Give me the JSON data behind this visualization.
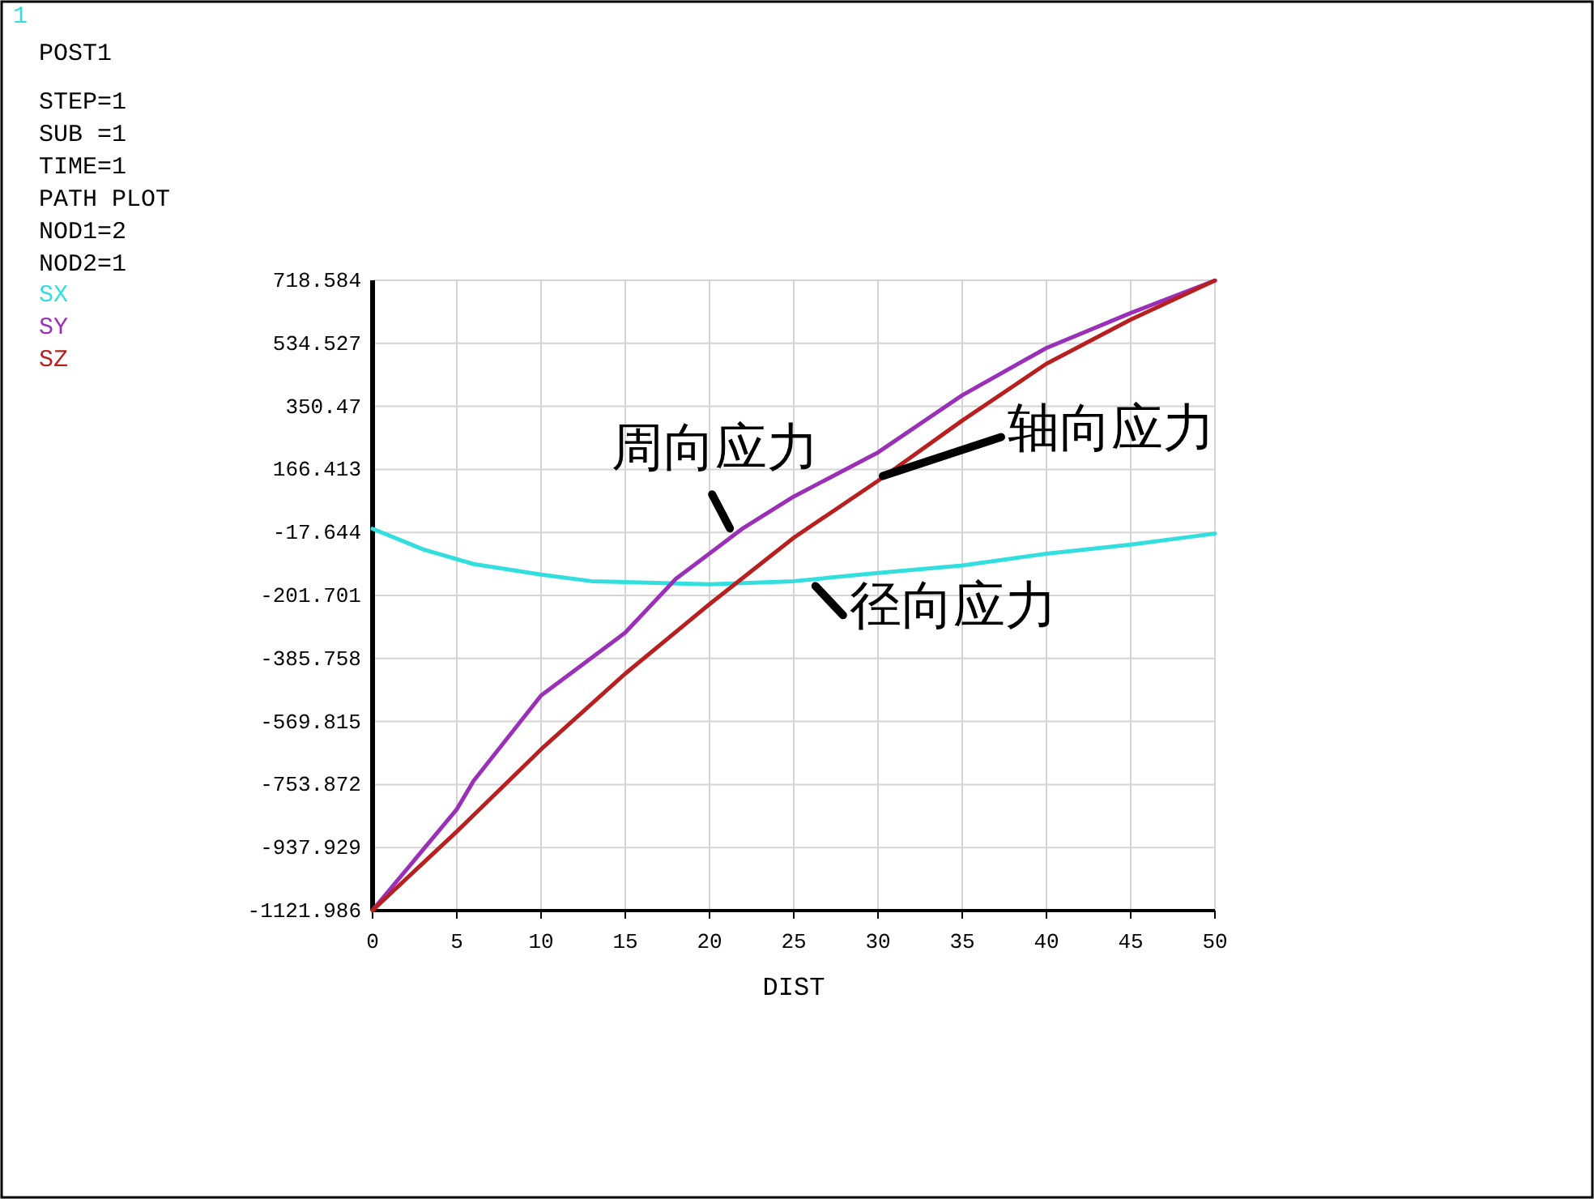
{
  "chart_data": {
    "type": "line",
    "xlabel": "DIST",
    "series": [
      {
        "name": "SX",
        "color": "#33dede",
        "x": [
          0,
          3,
          6,
          10,
          13,
          20,
          25,
          30,
          35,
          40,
          45,
          50
        ],
        "values": [
          -7,
          -67,
          -110,
          -141,
          -160,
          -169,
          -160,
          -136,
          -114,
          -80,
          -53,
          -21
        ]
      },
      {
        "name": "SY",
        "color": "#9a30b8",
        "x": [
          0,
          5,
          6,
          10,
          15,
          18,
          20,
          22,
          25,
          30,
          35,
          40,
          45,
          50
        ],
        "values": [
          -1121,
          -826,
          -743,
          -494,
          -310,
          -153,
          -79,
          -5,
          87,
          216,
          383,
          521,
          623,
          718
        ]
      },
      {
        "name": "SZ",
        "color": "#b82020",
        "x": [
          0,
          5,
          10,
          15,
          20,
          25,
          30,
          35,
          40,
          45,
          50
        ],
        "values": [
          -1121,
          -891,
          -651,
          -430,
          -227,
          -33,
          133,
          309,
          475,
          604,
          718
        ]
      }
    ],
    "xlim": [
      0,
      50
    ],
    "ylim": [
      -1121.986,
      718.584
    ],
    "xticks": [
      0,
      5,
      10,
      15,
      20,
      25,
      30,
      35,
      40,
      45,
      50
    ],
    "yticks": [
      718.584,
      534.527,
      350.47,
      166.413,
      -17.644,
      -201.701,
      -385.758,
      -569.815,
      -753.872,
      -937.929,
      -1121.986
    ],
    "grid": true,
    "legend": "top left",
    "marker": "none",
    "line_style": "solid",
    "annotations": [
      "1",
      "POST1",
      "STEP=1",
      "SUB =1",
      "TIME=1",
      "PATH PLOT",
      "NOD1=2",
      "NOD2=1",
      {
        "text": "周向应力",
        "x": 21.5,
        "y": -20
      },
      {
        "text": "轴向应力",
        "x": 30,
        "y": 133
      },
      {
        "text": "径向应力",
        "x": 26,
        "y": -160
      }
    ]
  }
}
